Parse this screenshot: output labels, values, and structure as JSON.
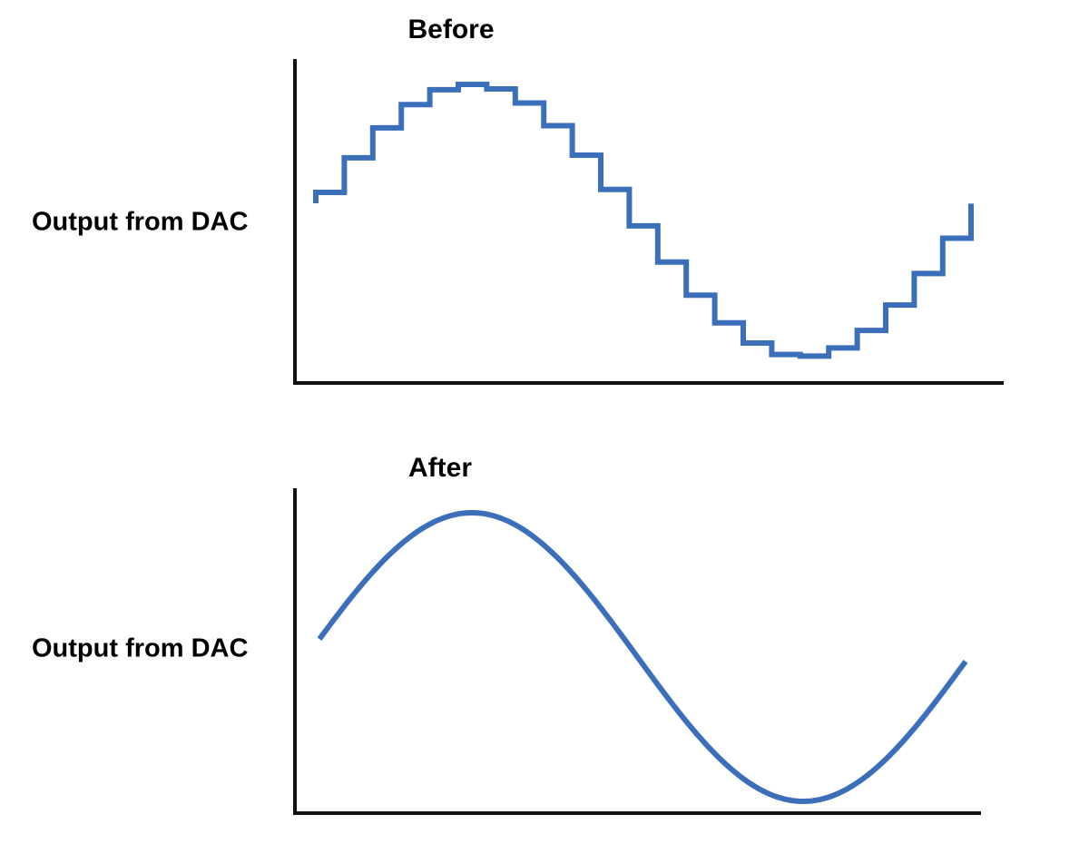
{
  "panels": [
    {
      "title": "Before",
      "y_label": "Output from DAC"
    },
    {
      "title": "After",
      "y_label": "Output from DAC"
    }
  ]
}
